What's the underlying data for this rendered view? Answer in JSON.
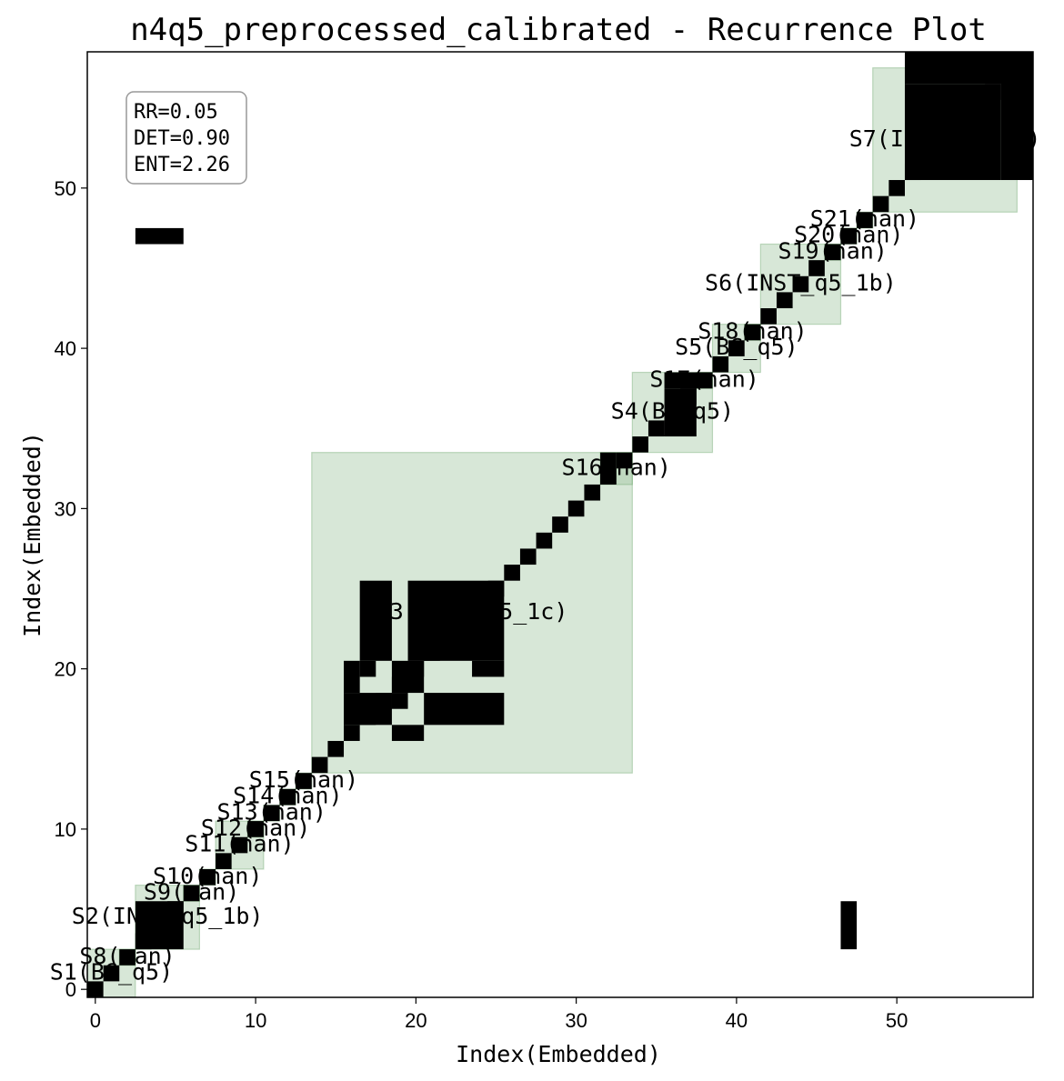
{
  "chart_data": {
    "type": "heatmap",
    "title": "n4q5_preprocessed_calibrated - Recurrence Plot",
    "xlabel": "Index(Embedded)",
    "ylabel": "Index(Embedded)",
    "xlim": [
      -0.5,
      58.5
    ],
    "ylim": [
      -0.5,
      58.5
    ],
    "x_ticks": [
      0,
      10,
      20,
      30,
      40,
      50
    ],
    "y_ticks": [
      0,
      10,
      20,
      30,
      40,
      50
    ],
    "colors": {
      "recurrence": "#000000",
      "segment_fill": "#9cc49c",
      "segment_edge": "#5a9a5a",
      "background": "#ffffff"
    },
    "stats": [
      "RR=0.05",
      "DET=0.90",
      "ENT=2.26"
    ],
    "segments": [
      {
        "label": "S1(BG_q5)",
        "start": 0,
        "end": 2
      },
      {
        "label": "S2(INST_q5_1b)",
        "start": 3,
        "end": 6
      },
      {
        "label": "S3(INST_q5_1c)",
        "start": 14,
        "end": 33
      },
      {
        "label": "S4(BG_q5)",
        "start": 34,
        "end": 38
      },
      {
        "label": "S5(BG_q5)",
        "start": 39,
        "end": 41
      },
      {
        "label": "S6(INST_q5_1b)",
        "start": 42,
        "end": 46
      },
      {
        "label": "S7(INST_q5_1b)",
        "start": 49,
        "end": 57
      },
      {
        "label": "S8(nan)",
        "start": 2,
        "end": 2
      },
      {
        "label": "S9(nan)",
        "start": 6,
        "end": 6
      },
      {
        "label": "S10(nan)",
        "start": 7,
        "end": 7
      },
      {
        "label": "S11(nan)",
        "start": 8,
        "end": 10
      },
      {
        "label": "S12(nan)",
        "start": 10,
        "end": 10
      },
      {
        "label": "S13(nan)",
        "start": 11,
        "end": 11
      },
      {
        "label": "S14(nan)",
        "start": 12,
        "end": 12
      },
      {
        "label": "S15(nan)",
        "start": 13,
        "end": 13
      },
      {
        "label": "S16(nan)",
        "start": 32,
        "end": 33
      },
      {
        "label": "S17(nan)",
        "start": 38,
        "end": 38
      },
      {
        "label": "S18(nan)",
        "start": 41,
        "end": 41
      },
      {
        "label": "S19(nan)",
        "start": 46,
        "end": 46
      },
      {
        "label": "S20(nan)",
        "start": 47,
        "end": 47
      },
      {
        "label": "S21(nan)",
        "start": 48,
        "end": 48
      }
    ],
    "recurrence_blocks": [
      {
        "x": [
          3,
          5
        ],
        "y": [
          3,
          5
        ]
      },
      {
        "x": [
          17,
          18
        ],
        "y": [
          21,
          25
        ]
      },
      {
        "x": [
          20,
          25
        ],
        "y": [
          21,
          25
        ]
      },
      {
        "x": [
          16,
          16
        ],
        "y": [
          19,
          20
        ]
      },
      {
        "x": [
          17,
          17
        ],
        "y": [
          20,
          20
        ]
      },
      {
        "x": [
          19,
          20
        ],
        "y": [
          19,
          20
        ]
      },
      {
        "x": [
          24,
          25
        ],
        "y": [
          20,
          20
        ]
      },
      {
        "x": [
          16,
          18
        ],
        "y": [
          17,
          18
        ]
      },
      {
        "x": [
          19,
          19
        ],
        "y": [
          18,
          18
        ]
      },
      {
        "x": [
          21,
          25
        ],
        "y": [
          17,
          18
        ]
      },
      {
        "x": [
          19,
          20
        ],
        "y": [
          16,
          16
        ]
      },
      {
        "x": [
          36,
          37
        ],
        "y": [
          35,
          37
        ]
      },
      {
        "x": [
          51,
          56
        ],
        "y": [
          51,
          56
        ]
      },
      {
        "x": [
          32,
          32
        ],
        "y": [
          32,
          33
        ]
      },
      {
        "x": [
          36,
          38
        ],
        "y": [
          38,
          38
        ]
      },
      {
        "x": [
          3,
          5
        ],
        "y": [
          47,
          47
        ]
      },
      {
        "x": [
          47,
          47
        ],
        "y": [
          3,
          5
        ]
      },
      {
        "x": [
          51,
          58
        ],
        "y": [
          57,
          58
        ]
      },
      {
        "x": [
          57,
          58
        ],
        "y": [
          51,
          58
        ]
      }
    ]
  }
}
